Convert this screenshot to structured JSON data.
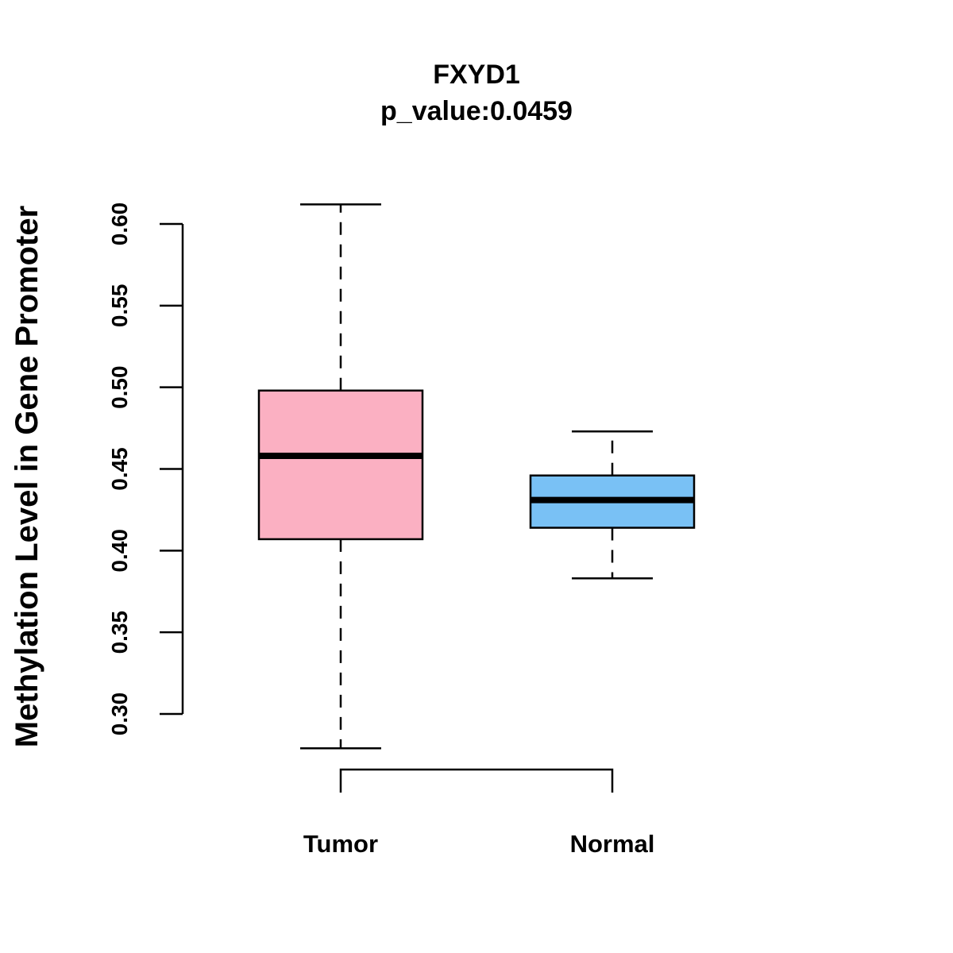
{
  "chart_data": {
    "type": "box",
    "title": "FXYD1",
    "subtitle": "p_value:0.0459",
    "xlabel": "",
    "ylabel": "Methylation Level in Gene Promoter",
    "ylim": [
      0.3,
      0.6
    ],
    "yticks": [
      "0.30",
      "0.35",
      "0.40",
      "0.45",
      "0.50",
      "0.55",
      "0.60"
    ],
    "grid": false,
    "categories": [
      "Tumor",
      "Normal"
    ],
    "boxes": [
      {
        "name": "Tumor",
        "whisker_low": 0.279,
        "q1": 0.407,
        "median": 0.458,
        "q3": 0.498,
        "whisker_high": 0.612,
        "fill": "#fbb0c2"
      },
      {
        "name": "Normal",
        "whisker_low": 0.383,
        "q1": 0.414,
        "median": 0.431,
        "q3": 0.446,
        "whisker_high": 0.473,
        "fill": "#79c1f5"
      }
    ],
    "significance_bracket": {
      "from": "Tumor",
      "to": "Normal",
      "label": ""
    }
  }
}
